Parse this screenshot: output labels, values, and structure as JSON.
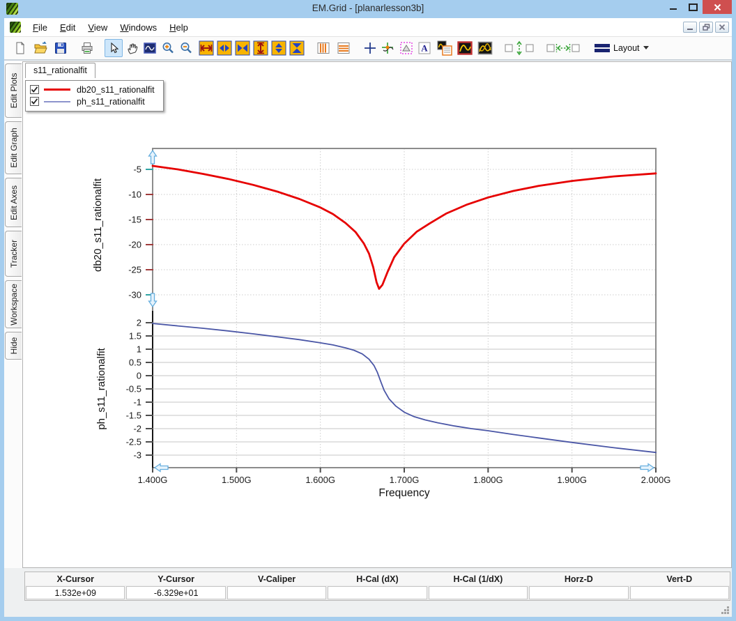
{
  "window": {
    "title": "EM.Grid - [planarlesson3b]"
  },
  "menu": {
    "items": [
      "File",
      "Edit",
      "View",
      "Windows",
      "Help"
    ]
  },
  "toolbar": {
    "layout_label": "Layout",
    "icons": [
      "new-document",
      "open-file",
      "save",
      "print",
      "select-cursor",
      "pan-hand",
      "zoom-window",
      "zoom-in",
      "zoom-out",
      "expand-x-axis",
      "arrows-out-x",
      "arrows-in-x",
      "expand-y-axis",
      "arrows-out-y",
      "arrows-in-y",
      "vertical-markers",
      "horizontal-markers",
      "crosshair",
      "tracker",
      "shape-select",
      "text-annotation",
      "plot-with-list",
      "single-plot",
      "overlay-plots",
      "fit-vertical",
      "fit-horizontal",
      "layout-menu"
    ]
  },
  "sidebar": {
    "tabs": [
      "Edit Plots",
      "Edit Graph",
      "Edit Axes",
      "Tracker",
      "Workspace",
      "Hide"
    ]
  },
  "tabs": {
    "active": "s11_rationalfit"
  },
  "legend": {
    "items": [
      {
        "label": "db20_s11_rationalfit",
        "color": "#e60000",
        "checked": true
      },
      {
        "label": "ph_s11_rationalfit",
        "color": "#8d94cc",
        "checked": true
      }
    ]
  },
  "chart_data": [
    {
      "type": "line",
      "title": "",
      "ylabel": "db20_s11_rationalfit",
      "xlabel": "Frequency",
      "xlim": [
        1.4,
        2.0
      ],
      "ylim": [
        -31.1,
        -0.8
      ],
      "x_tick_values": [
        1.4,
        1.5,
        1.6,
        1.7,
        1.8,
        1.9,
        2.0
      ],
      "x_tick_labels": [
        "1.400G",
        "1.500G",
        "1.600G",
        "1.700G",
        "1.800G",
        "1.900G",
        "2.000G"
      ],
      "y_tick_values": [
        -5,
        -10,
        -15,
        -20,
        -25,
        -30
      ],
      "y_tick_labels": [
        "-5",
        "-10",
        "-15",
        "-20",
        "-25",
        "-30"
      ],
      "grid": "dotted",
      "legend_position": "none",
      "tick_color_mid": "#a03c3c",
      "tick_color_ends": "#2fa3a3",
      "series": [
        {
          "name": "db20_s11_rationalfit",
          "color": "#e60000",
          "x": [
            1.4,
            1.43,
            1.46,
            1.49,
            1.52,
            1.55,
            1.575,
            1.6,
            1.615,
            1.63,
            1.642,
            1.652,
            1.658,
            1.663,
            1.667,
            1.67,
            1.674,
            1.68,
            1.688,
            1.7,
            1.715,
            1.73,
            1.75,
            1.775,
            1.8,
            1.83,
            1.86,
            1.9,
            1.95,
            2.0
          ],
          "y": [
            -4.3,
            -5.0,
            -5.9,
            -6.9,
            -8.1,
            -9.5,
            -10.9,
            -12.6,
            -13.9,
            -15.7,
            -17.5,
            -19.8,
            -21.8,
            -24.5,
            -27.5,
            -28.8,
            -28.0,
            -25.5,
            -22.5,
            -19.8,
            -17.4,
            -15.8,
            -13.8,
            -12.0,
            -10.6,
            -9.3,
            -8.3,
            -7.3,
            -6.4,
            -5.8
          ]
        }
      ]
    },
    {
      "type": "line",
      "title": "",
      "ylabel": "ph_s11_rationalfit",
      "xlabel": "Frequency",
      "xlim": [
        1.4,
        2.0
      ],
      "ylim": [
        -3.47,
        2.45
      ],
      "y_tick_values": [
        2,
        1.5,
        1,
        0.5,
        0,
        -0.5,
        -1,
        -1.5,
        -2,
        -2.5,
        -3
      ],
      "y_tick_labels": [
        "2",
        "1.5",
        "1",
        "0.5",
        "0",
        "-0.5",
        "-1",
        "-1.5",
        "-2",
        "-2.5",
        "-3"
      ],
      "grid": "solid",
      "legend_position": "none",
      "tick_color_mid": "#4d4d4d",
      "tick_color_ends": "#4d4d4d",
      "series": [
        {
          "name": "ph_s11_rationalfit",
          "color": "#4a56a6",
          "x": [
            1.4,
            1.43,
            1.46,
            1.49,
            1.52,
            1.55,
            1.575,
            1.6,
            1.615,
            1.63,
            1.64,
            1.65,
            1.658,
            1.664,
            1.668,
            1.672,
            1.676,
            1.682,
            1.69,
            1.7,
            1.712,
            1.725,
            1.74,
            1.76,
            1.78,
            1.8,
            1.83,
            1.86,
            1.9,
            1.95,
            2.0
          ],
          "y": [
            1.97,
            1.88,
            1.79,
            1.69,
            1.58,
            1.46,
            1.36,
            1.24,
            1.16,
            1.05,
            0.96,
            0.82,
            0.62,
            0.38,
            0.12,
            -0.22,
            -0.55,
            -0.88,
            -1.15,
            -1.38,
            -1.55,
            -1.67,
            -1.78,
            -1.9,
            -2.0,
            -2.08,
            -2.22,
            -2.35,
            -2.52,
            -2.72,
            -2.9
          ]
        }
      ]
    }
  ],
  "statusbar": {
    "columns": [
      "X-Cursor",
      "Y-Cursor",
      "V-Caliper",
      "H-Cal (dX)",
      "H-Cal (1/dX)",
      "Horz-D",
      "Vert-D"
    ],
    "values": [
      "1.532e+09",
      "-6.329e+01",
      "",
      "",
      "",
      "",
      ""
    ]
  }
}
